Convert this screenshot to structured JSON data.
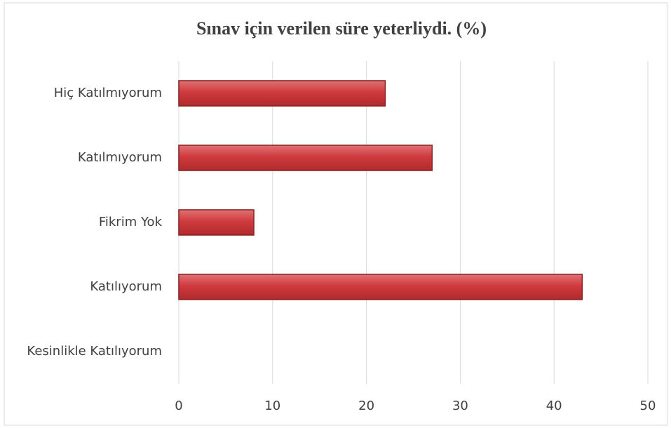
{
  "chart_data": {
    "type": "bar",
    "orientation": "horizontal",
    "title": "Sınav için verilen süre yeterliydi. (%)",
    "categories": [
      "Hiç Katılmıyorum",
      "Katılmıyorum",
      "Fikrim Yok",
      "Katılıyorum",
      "Kesinlikle Katılıyorum"
    ],
    "values": [
      22,
      27,
      8,
      43,
      0
    ],
    "color": "#c8383b",
    "xlim": [
      0,
      50
    ],
    "xticks": [
      0,
      10,
      20,
      30,
      40,
      50
    ],
    "grid": true
  }
}
